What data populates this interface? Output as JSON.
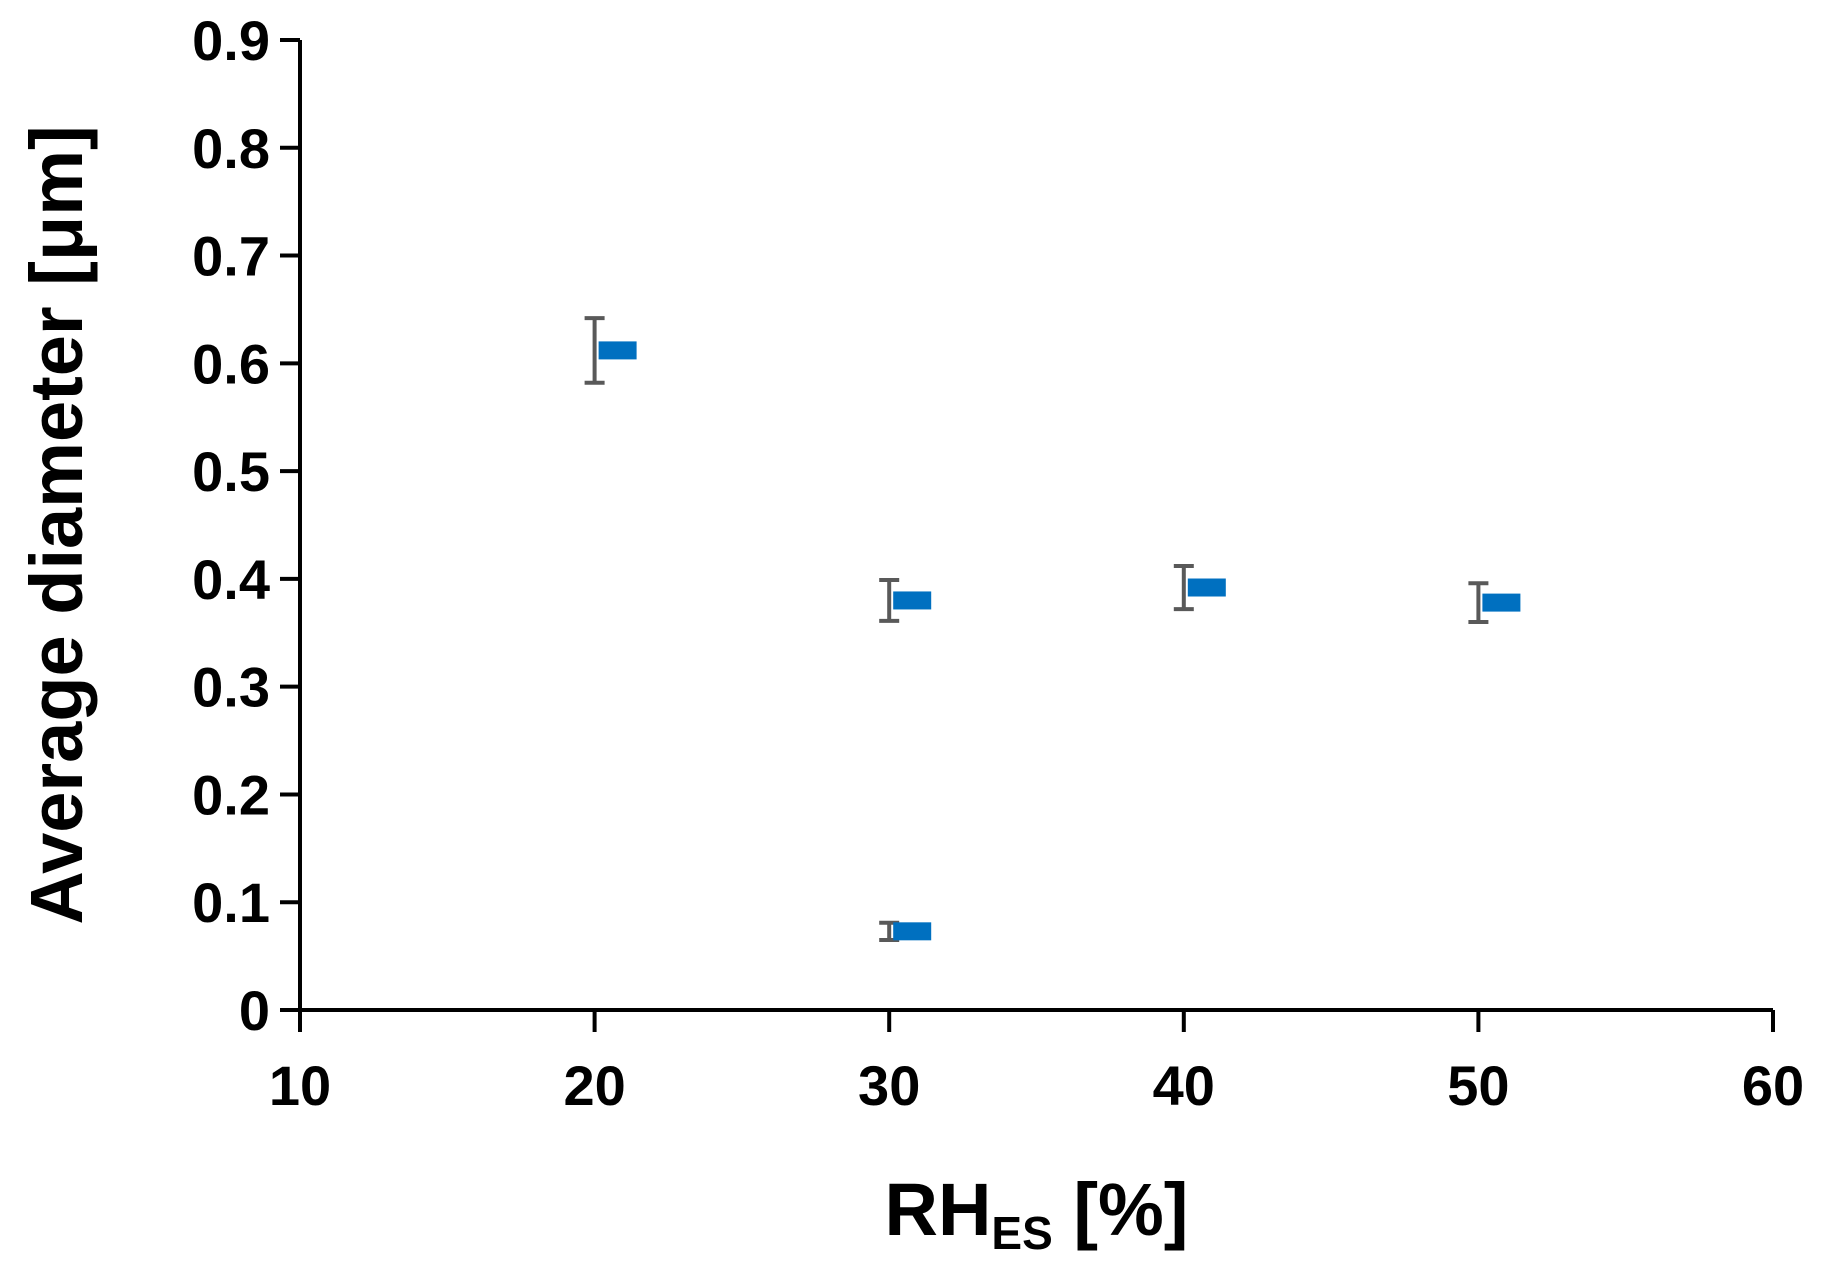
{
  "chart_data": {
    "type": "scatter",
    "title": "",
    "xlabel": "RH",
    "xlabel_subscript": "ES",
    "xlabel_suffix": " [%]",
    "ylabel": "Average diameter [μm]",
    "xlim": [
      10,
      60
    ],
    "ylim": [
      0,
      0.9
    ],
    "x_ticks": [
      10,
      20,
      30,
      40,
      50,
      60
    ],
    "y_ticks": [
      0,
      0.1,
      0.2,
      0.3,
      0.4,
      0.5,
      0.6,
      0.7,
      0.8,
      0.9
    ],
    "x_tick_labels": [
      "10",
      "20",
      "30",
      "40",
      "50",
      "60"
    ],
    "y_tick_labels": [
      "0",
      "0.1",
      "0.2",
      "0.3",
      "0.4",
      "0.5",
      "0.6",
      "0.7",
      "0.8",
      "0.9"
    ],
    "grid": false,
    "legend": "none",
    "marker_color": "#0070C0",
    "error_bar_color": "#595959",
    "points": [
      {
        "x": 20,
        "y": 0.612,
        "y_err": 0.03
      },
      {
        "x": 30,
        "y": 0.38,
        "y_err": 0.019
      },
      {
        "x": 30,
        "y": 0.073,
        "y_err": 0.008
      },
      {
        "x": 40,
        "y": 0.392,
        "y_err": 0.02
      },
      {
        "x": 50,
        "y": 0.378,
        "y_err": 0.018
      }
    ]
  }
}
